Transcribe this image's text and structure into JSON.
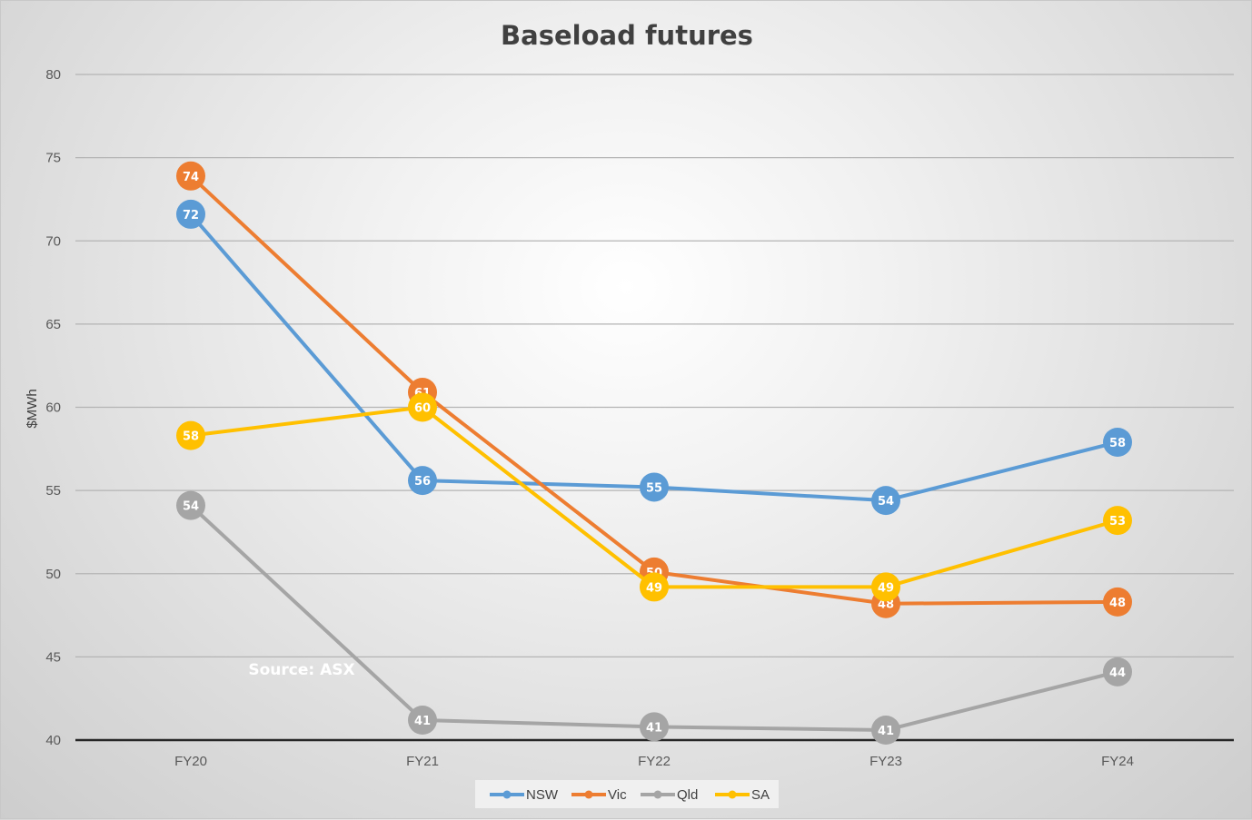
{
  "chart_data": {
    "type": "line",
    "title": "Baseload futures",
    "xlabel": "",
    "ylabel": "$MWh",
    "ylim": [
      40,
      80
    ],
    "yticks": [
      40,
      45,
      50,
      55,
      60,
      65,
      70,
      75,
      80
    ],
    "grid": true,
    "legend_position": "bottom",
    "categories": [
      "FY20",
      "FY21",
      "FY22",
      "FY23",
      "FY24"
    ],
    "annotation": "Source: ASX",
    "series": [
      {
        "name": "NSW",
        "color": "#5b9bd5",
        "values": [
          71.6,
          55.6,
          55.2,
          54.4,
          57.9
        ],
        "labels": [
          "72",
          "56",
          "55",
          "54",
          "58"
        ]
      },
      {
        "name": "Vic",
        "color": "#ed7d31",
        "values": [
          73.9,
          60.9,
          50.1,
          48.2,
          48.3
        ],
        "labels": [
          "74",
          "61",
          "50",
          "48",
          "48"
        ]
      },
      {
        "name": "Qld",
        "color": "#a5a5a5",
        "values": [
          54.1,
          41.2,
          40.8,
          40.6,
          44.1
        ],
        "labels": [
          "54",
          "41",
          "41",
          "41",
          "44"
        ]
      },
      {
        "name": "SA",
        "color": "#ffc000",
        "values": [
          58.3,
          60.0,
          49.2,
          49.2,
          53.2
        ],
        "labels": [
          "58",
          "60",
          "49",
          "49",
          "53"
        ]
      }
    ]
  }
}
